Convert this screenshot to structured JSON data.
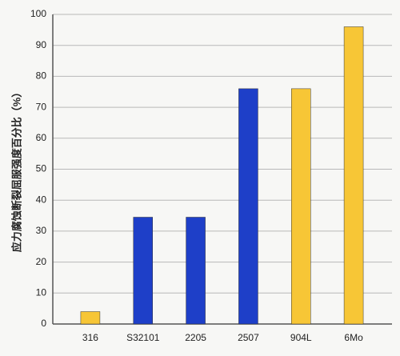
{
  "chart_data": {
    "type": "bar",
    "y_label": "应力腐蚀断裂屈服强度百分比（%）",
    "categories": [
      "316",
      "S32101",
      "2205",
      "2507",
      "904L",
      "6Mo"
    ],
    "values": [
      4,
      34.5,
      34.5,
      76,
      76,
      96
    ],
    "colors": [
      "#f7c636",
      "#1e3fc8",
      "#1e3fc8",
      "#1e3fc8",
      "#f7c636",
      "#f7c636"
    ],
    "ylim": [
      0,
      100
    ],
    "yticks": [
      0,
      10,
      20,
      30,
      40,
      50,
      60,
      70,
      80,
      90,
      100
    ],
    "grid": true
  }
}
